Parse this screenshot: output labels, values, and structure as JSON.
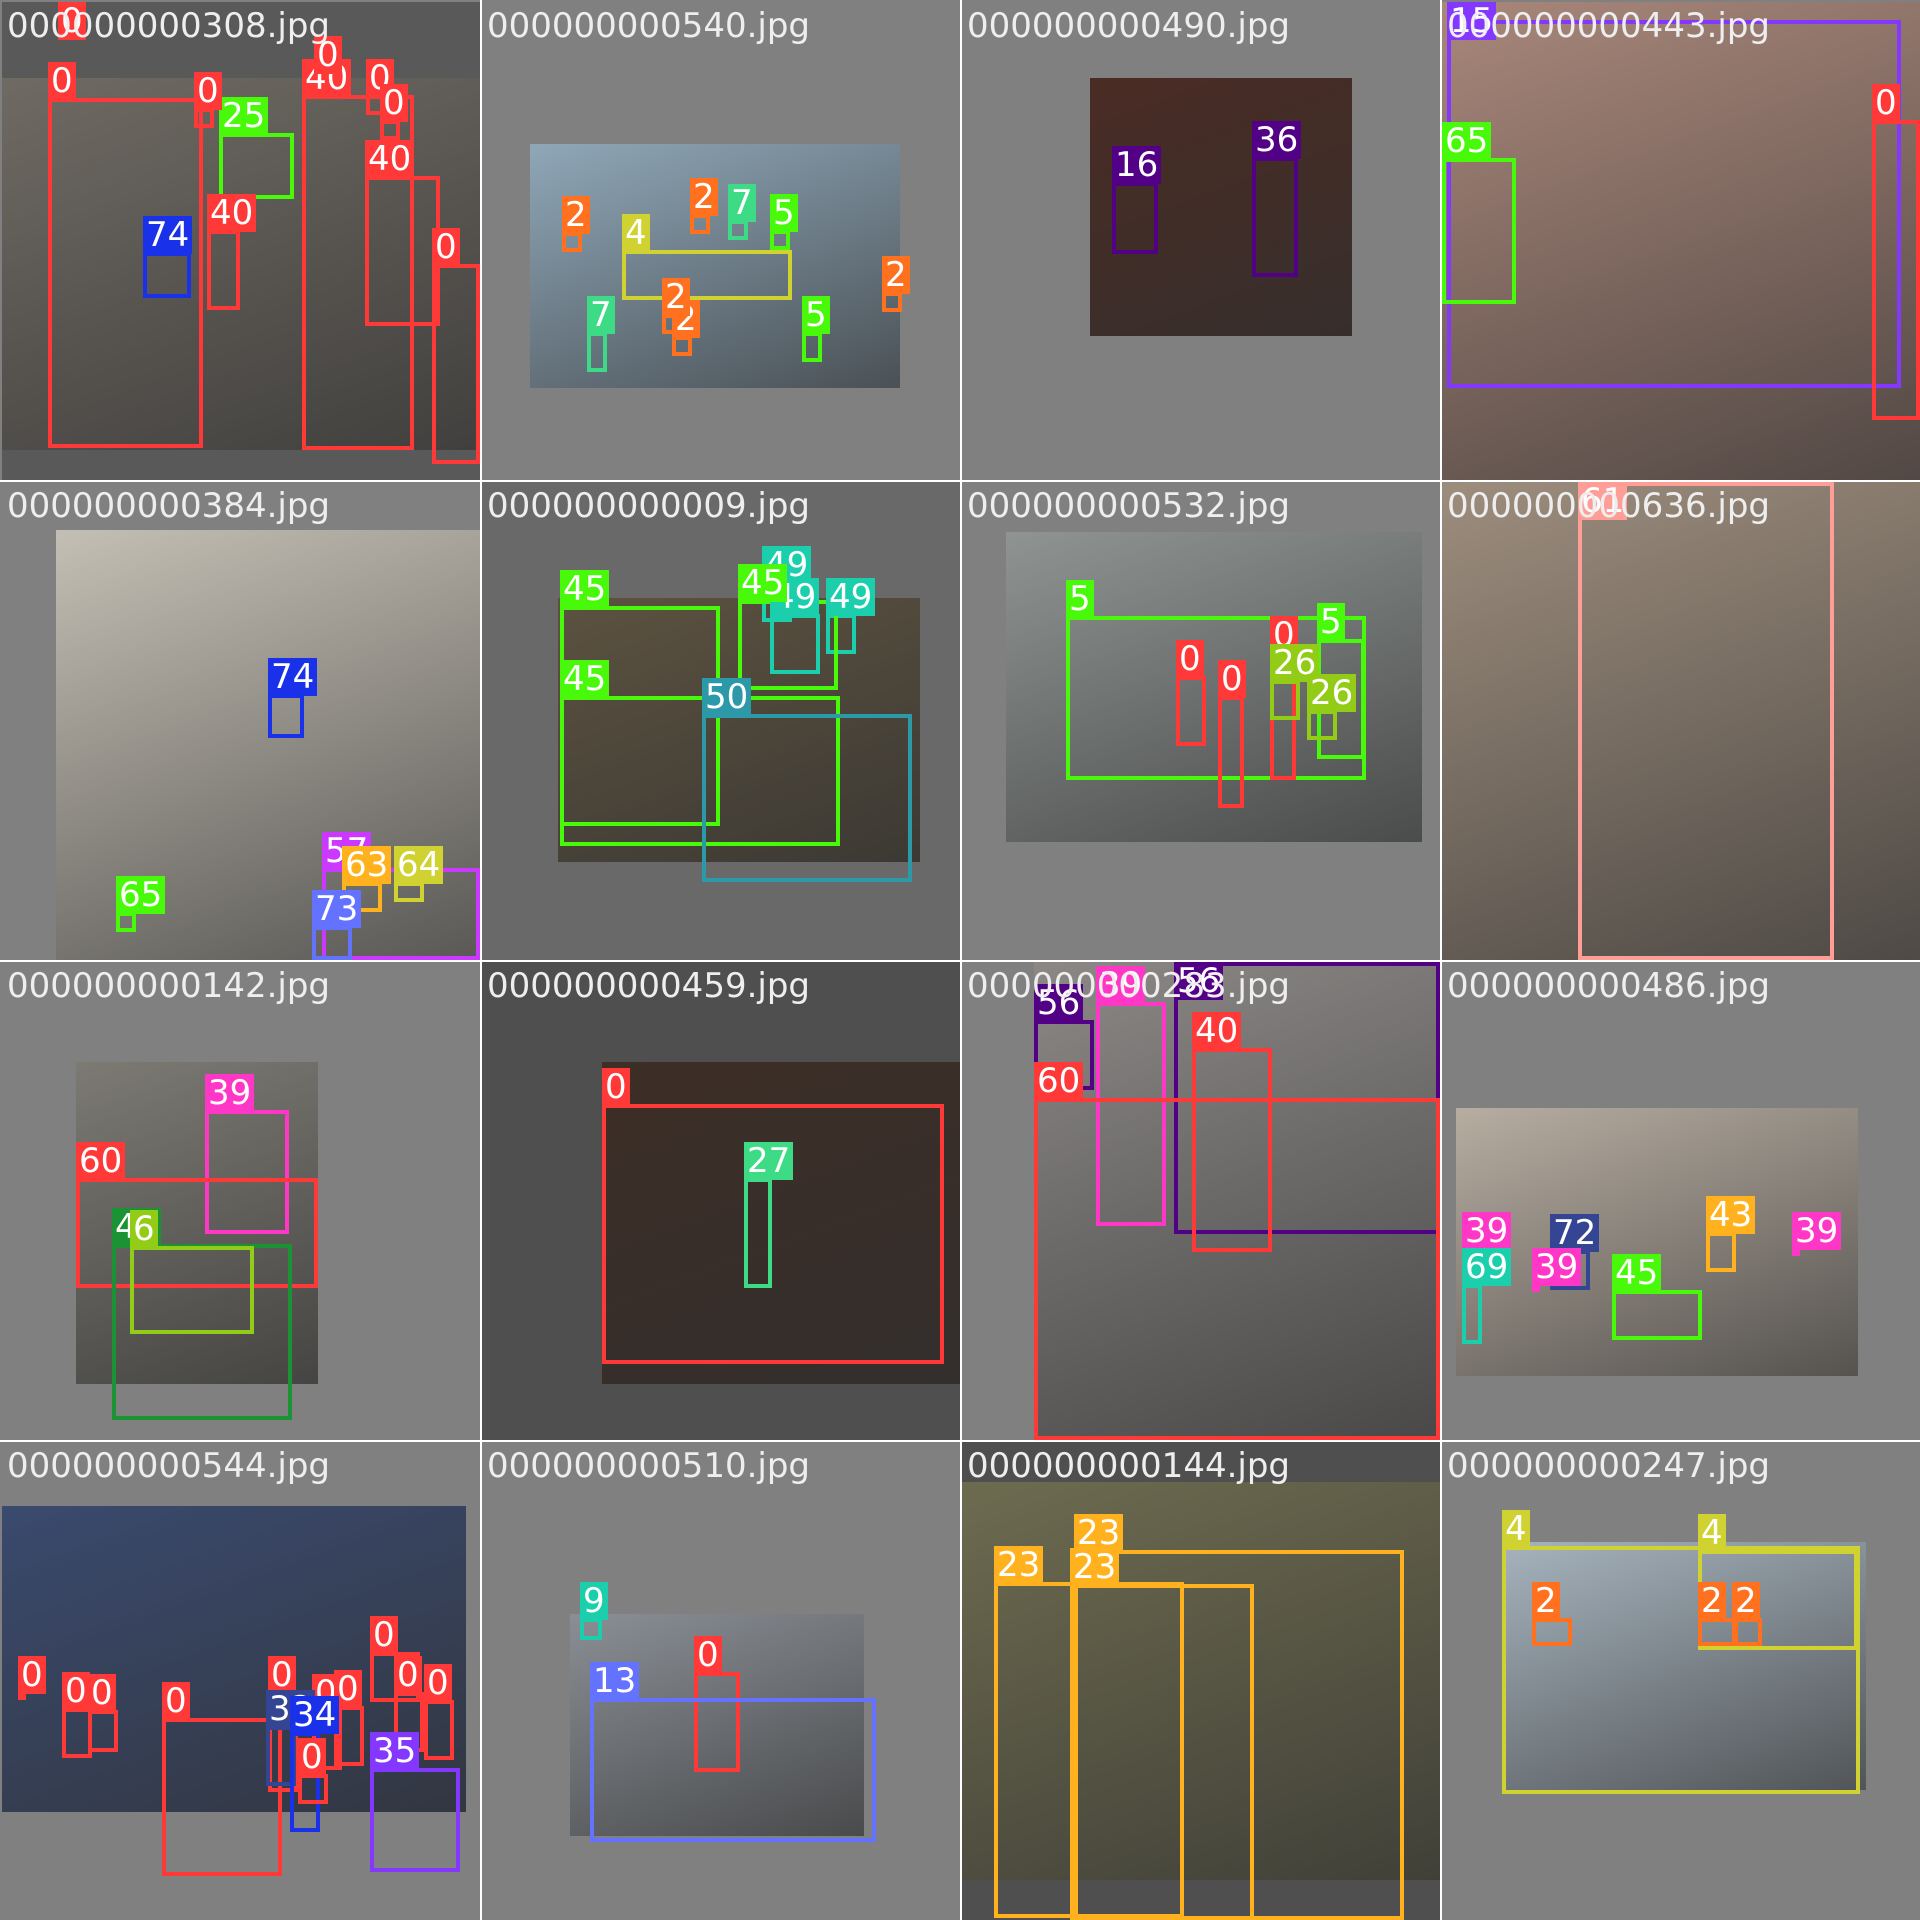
{
  "grid": {
    "tiles": [
      {
        "file": "000000000308.jpg",
        "bg": "#595959",
        "photo": "#6f6a63",
        "labels": [
          {
            "cls": "0",
            "color": "#ff3838"
          },
          {
            "cls": "25",
            "color": "#48f90a"
          },
          {
            "cls": "74",
            "color": "#1a31ea"
          },
          {
            "cls": "40",
            "color": "#ff3838"
          },
          {
            "cls": "40",
            "color": "#ff3838"
          },
          {
            "cls": "40",
            "color": "#ff3838"
          },
          {
            "cls": "0",
            "color": "#ff3838"
          },
          {
            "cls": "0",
            "color": "#ff3838"
          },
          {
            "cls": "0",
            "color": "#ff3838"
          },
          {
            "cls": "0",
            "color": "#ff3838"
          },
          {
            "cls": "0",
            "color": "#ff3838"
          },
          {
            "cls": "0",
            "color": "#ff3838"
          }
        ]
      },
      {
        "file": "000000000540.jpg",
        "bg": "#808080",
        "photo": "#8fa7b8",
        "labels": [
          {
            "cls": "2",
            "color": "#ff701f"
          },
          {
            "cls": "4",
            "color": "#cfd231"
          },
          {
            "cls": "2",
            "color": "#ff701f"
          },
          {
            "cls": "7",
            "color": "#3ddb86"
          },
          {
            "cls": "5",
            "color": "#48f90a"
          },
          {
            "cls": "2",
            "color": "#ff701f"
          },
          {
            "cls": "2",
            "color": "#ff701f"
          },
          {
            "cls": "7",
            "color": "#3ddb86"
          },
          {
            "cls": "2",
            "color": "#ff701f"
          },
          {
            "cls": "5",
            "color": "#48f90a"
          }
        ]
      },
      {
        "file": "000000000490.jpg",
        "bg": "#808080",
        "photo": "#4a2c24",
        "labels": [
          {
            "cls": "16",
            "color": "#520085"
          },
          {
            "cls": "36",
            "color": "#520085"
          }
        ]
      },
      {
        "file": "000000000443.jpg",
        "bg": "#808080",
        "photo": "#a9877a",
        "labels": [
          {
            "cls": "57",
            "color": "#8438ff"
          },
          {
            "cls": "15",
            "color": "#8438ff"
          },
          {
            "cls": "65",
            "color": "#48f90a"
          },
          {
            "cls": "0",
            "color": "#ff3838"
          }
        ]
      },
      {
        "file": "000000000384.jpg",
        "bg": "#808080",
        "photo": "#c4bfb4",
        "labels": [
          {
            "cls": "74",
            "color": "#1a31ea"
          },
          {
            "cls": "57",
            "color": "#cb38ff"
          },
          {
            "cls": "63",
            "color": "#ffb21d"
          },
          {
            "cls": "64",
            "color": "#cfd231"
          },
          {
            "cls": "65",
            "color": "#48f90a"
          },
          {
            "cls": "73",
            "color": "#6473ff"
          }
        ]
      },
      {
        "file": "000000000009.jpg",
        "bg": "#696969",
        "photo": "#5c5240",
        "labels": [
          {
            "cls": "45",
            "color": "#48f90a"
          },
          {
            "cls": "45",
            "color": "#48f90a"
          },
          {
            "cls": "49",
            "color": "#1bcfad"
          },
          {
            "cls": "49",
            "color": "#1bcfad"
          },
          {
            "cls": "49",
            "color": "#1bcfad"
          },
          {
            "cls": "50",
            "color": "#2c99a8"
          },
          {
            "cls": "45",
            "color": "#48f90a"
          }
        ]
      },
      {
        "file": "000000000532.jpg",
        "bg": "#808080",
        "photo": "#8f9493",
        "labels": [
          {
            "cls": "5",
            "color": "#48f90a"
          },
          {
            "cls": "5",
            "color": "#48f90a"
          },
          {
            "cls": "0",
            "color": "#ff3838"
          },
          {
            "cls": "0",
            "color": "#ff3838"
          },
          {
            "cls": "0",
            "color": "#ff3838"
          },
          {
            "cls": "26",
            "color": "#92cc17"
          },
          {
            "cls": "26",
            "color": "#92cc17"
          }
        ]
      },
      {
        "file": "000000000636.jpg",
        "bg": "#808080",
        "photo": "#9d8d7d",
        "labels": [
          {
            "cls": "61",
            "color": "#ff9d97"
          }
        ]
      },
      {
        "file": "000000000142.jpg",
        "bg": "#808080",
        "photo": "#7c7a73",
        "labels": [
          {
            "cls": "39",
            "color": "#ff37c7"
          },
          {
            "cls": "60",
            "color": "#ff3838"
          },
          {
            "cls": "48",
            "color": "#1a9334"
          },
          {
            "cls": "6",
            "color": "#92cc17"
          }
        ]
      },
      {
        "file": "000000000459.jpg",
        "bg": "#4f4f4f",
        "photo": "#3d2e26",
        "labels": [
          {
            "cls": "0",
            "color": "#ff3838"
          },
          {
            "cls": "27",
            "color": "#3ddb86"
          }
        ]
      },
      {
        "file": "000000000283.jpg",
        "bg": "#808080",
        "photo": "#8b8886",
        "labels": [
          {
            "cls": "39",
            "color": "#ff37c7"
          },
          {
            "cls": "56",
            "color": "#520085"
          },
          {
            "cls": "56",
            "color": "#520085"
          },
          {
            "cls": "40",
            "color": "#ff3838"
          },
          {
            "cls": "60",
            "color": "#ff3838"
          }
        ]
      },
      {
        "file": "000000000486.jpg",
        "bg": "#808080",
        "photo": "#b7ada1",
        "labels": [
          {
            "cls": "72",
            "color": "#344593"
          },
          {
            "cls": "43",
            "color": "#ffb21d"
          },
          {
            "cls": "39",
            "color": "#ff37c7"
          },
          {
            "cls": "39",
            "color": "#ff37c7"
          },
          {
            "cls": "39",
            "color": "#ff37c7"
          },
          {
            "cls": "69",
            "color": "#1bcfad"
          },
          {
            "cls": "45",
            "color": "#48f90a"
          }
        ]
      },
      {
        "file": "000000000544.jpg",
        "bg": "#808080",
        "photo": "#3a4a6e",
        "labels": [
          {
            "cls": "0",
            "color": "#ff3838"
          },
          {
            "cls": "0",
            "color": "#ff3838"
          },
          {
            "cls": "0",
            "color": "#ff3838"
          },
          {
            "cls": "0",
            "color": "#ff3838"
          },
          {
            "cls": "0",
            "color": "#ff3838"
          },
          {
            "cls": "0",
            "color": "#ff3838"
          },
          {
            "cls": "0",
            "color": "#ff3838"
          },
          {
            "cls": "0",
            "color": "#ff3838"
          },
          {
            "cls": "0",
            "color": "#ff3838"
          },
          {
            "cls": "32",
            "color": "#344593"
          },
          {
            "cls": "34",
            "color": "#1a31ea"
          },
          {
            "cls": "35",
            "color": "#8438ff"
          },
          {
            "cls": "0",
            "color": "#ff3838"
          },
          {
            "cls": "0",
            "color": "#ff3838"
          }
        ]
      },
      {
        "file": "000000000510.jpg",
        "bg": "#808080",
        "photo": "#8a8f95",
        "labels": [
          {
            "cls": "9",
            "color": "#1bcfad"
          },
          {
            "cls": "0",
            "color": "#ff3838"
          },
          {
            "cls": "13",
            "color": "#6473ff"
          }
        ]
      },
      {
        "file": "000000000144.jpg",
        "bg": "#4f4f4f",
        "photo": "#6d6b4f",
        "labels": [
          {
            "cls": "23",
            "color": "#ffb21d"
          },
          {
            "cls": "23",
            "color": "#ffb21d"
          },
          {
            "cls": "23",
            "color": "#ffb21d"
          }
        ]
      },
      {
        "file": "000000000247.jpg",
        "bg": "#808080",
        "photo": "#a6b3bd",
        "labels": [
          {
            "cls": "4",
            "color": "#cfd231"
          },
          {
            "cls": "4",
            "color": "#cfd231"
          },
          {
            "cls": "2",
            "color": "#ff701f"
          },
          {
            "cls": "2",
            "color": "#ff701f"
          },
          {
            "cls": "2",
            "color": "#ff701f"
          }
        ]
      }
    ]
  }
}
